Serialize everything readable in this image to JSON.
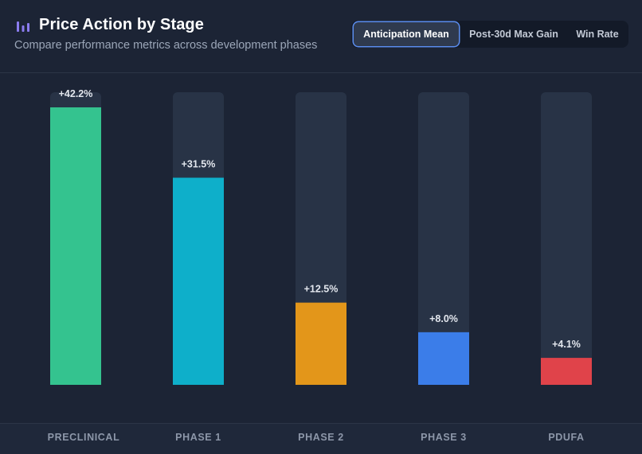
{
  "header": {
    "title": "Price Action by Stage",
    "subtitle": "Compare performance metrics across development phases",
    "icon": "bar-chart-icon"
  },
  "toggle": {
    "options": [
      "Anticipation Mean",
      "Post-30d Max Gain",
      "Win Rate"
    ],
    "active_index": 0
  },
  "colors": {
    "track": "#283346",
    "label": "#e3e7ee",
    "accent": "#5b8def"
  },
  "chart_data": {
    "type": "bar",
    "title": "Price Action by Stage",
    "metric": "Anticipation Mean",
    "categories": [
      "PRECLINICAL",
      "PHASE 1",
      "PHASE 2",
      "PHASE 3",
      "PDUFA"
    ],
    "values": [
      42.2,
      31.5,
      12.5,
      8.0,
      4.1
    ],
    "value_labels": [
      "+42.2%",
      "+31.5%",
      "+12.5%",
      "+8.0%",
      "+4.1%"
    ],
    "colors": [
      "#34c38f",
      "#0eafca",
      "#e3961a",
      "#3b7de9",
      "#e0434a"
    ],
    "ylim": [
      0,
      44.5
    ],
    "xlabel": "",
    "ylabel": "",
    "grid": false,
    "legend": "none"
  }
}
